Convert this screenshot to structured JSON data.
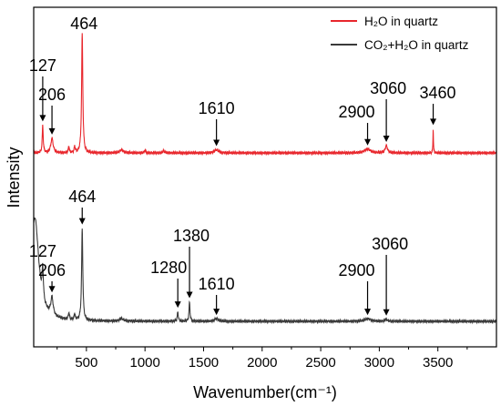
{
  "chart_data": {
    "type": "line",
    "title": "",
    "xlabel": "Wavenumber(cm⁻¹)",
    "ylabel": "Intensity",
    "xlim": [
      50,
      4000
    ],
    "xticks": [
      500,
      1000,
      1500,
      2000,
      2500,
      3000,
      3500
    ],
    "grid": false,
    "legend_position": "top-right",
    "series": [
      {
        "name": "H₂O in quartz",
        "color": "#e8262c",
        "baseline": 0.53,
        "peaks": [
          {
            "x": 127,
            "height": 0.85,
            "width": 5
          },
          {
            "x": 206,
            "height": 0.45,
            "width": 12
          },
          {
            "x": 350,
            "height": 0.2,
            "width": 5
          },
          {
            "x": 400,
            "height": 0.2,
            "width": 5
          },
          {
            "x": 464,
            "height": 3.7,
            "width": 6
          },
          {
            "x": 800,
            "height": 0.1,
            "width": 18
          },
          {
            "x": 1000,
            "height": 0.08,
            "width": 6
          },
          {
            "x": 1160,
            "height": 0.07,
            "width": 10
          },
          {
            "x": 1610,
            "height": 0.1,
            "width": 20
          },
          {
            "x": 2900,
            "height": 0.12,
            "width": 30
          },
          {
            "x": 3060,
            "height": 0.22,
            "width": 12
          },
          {
            "x": 3460,
            "height": 0.75,
            "width": 2.5
          }
        ],
        "annotations": [
          {
            "label": "127",
            "x": 127
          },
          {
            "label": "206",
            "x": 206
          },
          {
            "label": "464",
            "x": 464
          },
          {
            "label": "1610",
            "x": 1610
          },
          {
            "label": "2900",
            "x": 2900
          },
          {
            "label": "3060",
            "x": 3060
          },
          {
            "label": "3460",
            "x": 3460
          }
        ]
      },
      {
        "name": "CO₂+H₂O in quartz",
        "color": "#3a3a3a",
        "baseline": 0.0,
        "peaks": [
          {
            "x": 60,
            "height": 3.2,
            "width": 40
          },
          {
            "x": 127,
            "height": 0.95,
            "width": 6
          },
          {
            "x": 206,
            "height": 0.55,
            "width": 12
          },
          {
            "x": 350,
            "height": 0.22,
            "width": 5
          },
          {
            "x": 400,
            "height": 0.2,
            "width": 5
          },
          {
            "x": 464,
            "height": 2.85,
            "width": 6
          },
          {
            "x": 800,
            "height": 0.08,
            "width": 18
          },
          {
            "x": 1280,
            "height": 0.3,
            "width": 5
          },
          {
            "x": 1380,
            "height": 0.6,
            "width": 5
          },
          {
            "x": 1610,
            "height": 0.08,
            "width": 18
          },
          {
            "x": 2900,
            "height": 0.08,
            "width": 30
          },
          {
            "x": 3060,
            "height": 0.06,
            "width": 12
          }
        ],
        "annotations": [
          {
            "label": "127",
            "x": 127
          },
          {
            "label": "206",
            "x": 206
          },
          {
            "label": "464",
            "x": 464
          },
          {
            "label": "1280",
            "x": 1280
          },
          {
            "label": "1380",
            "x": 1380
          },
          {
            "label": "1610",
            "x": 1610
          },
          {
            "label": "2900",
            "x": 2900
          },
          {
            "label": "3060",
            "x": 3060
          }
        ]
      }
    ]
  }
}
